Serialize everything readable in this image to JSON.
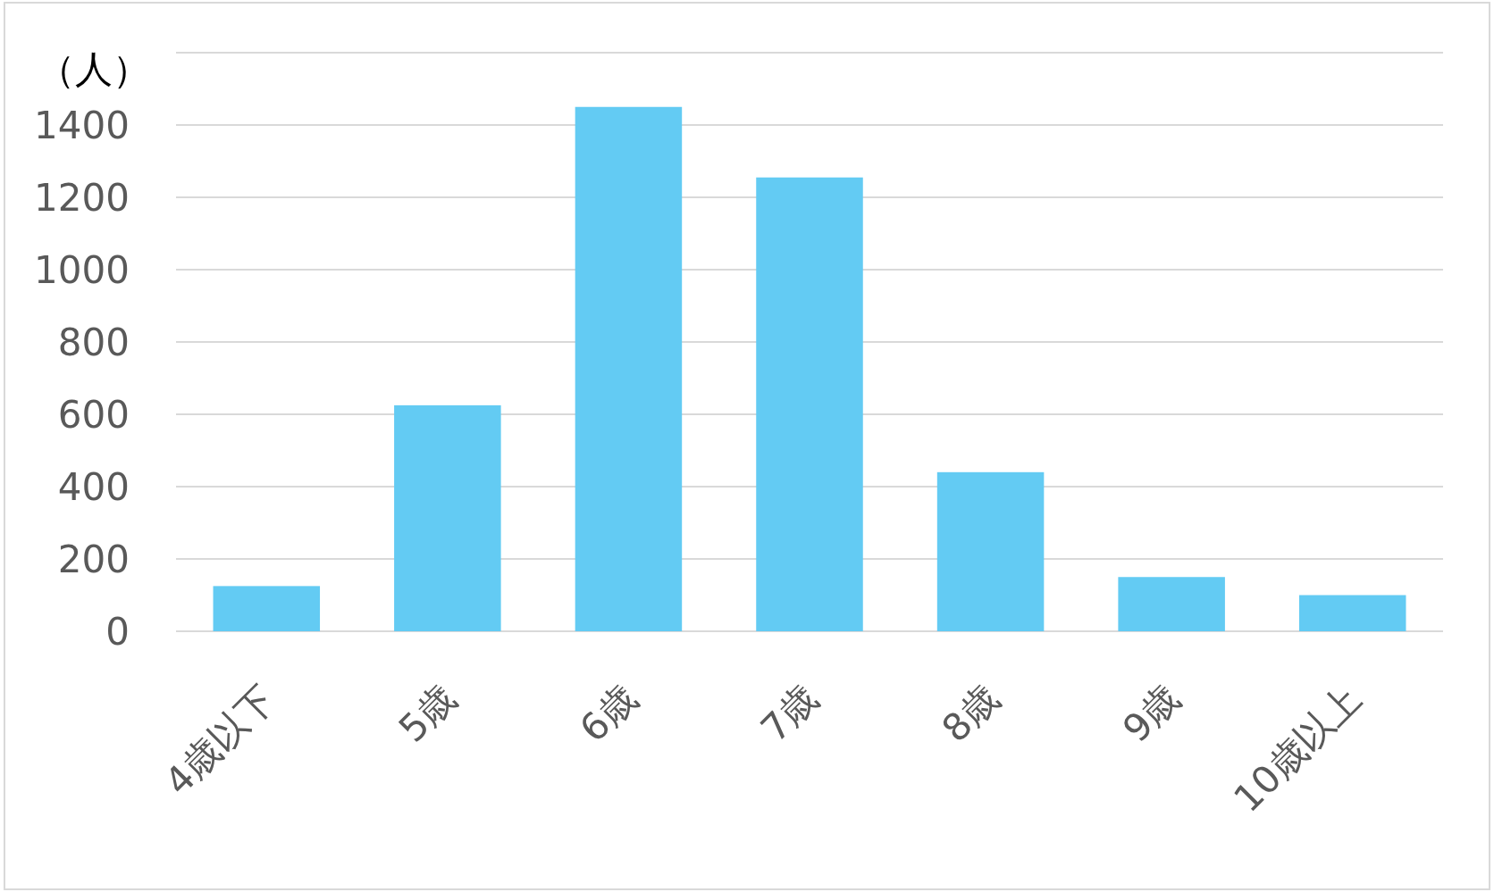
{
  "chart_data": {
    "type": "bar",
    "ylabel": "（人）",
    "categories": [
      "4歳以下",
      "5歳",
      "6歳",
      "7歳",
      "8歳",
      "9歳",
      "10歳以上"
    ],
    "values": [
      125,
      625,
      1450,
      1255,
      440,
      150,
      100
    ],
    "color": "#63cbf3",
    "ylim": [
      0,
      1600
    ],
    "yticks": [
      0,
      200,
      400,
      600,
      800,
      1000,
      1200,
      1400,
      {
        "value": 1600,
        "label": null
      }
    ],
    "grid": "y"
  }
}
